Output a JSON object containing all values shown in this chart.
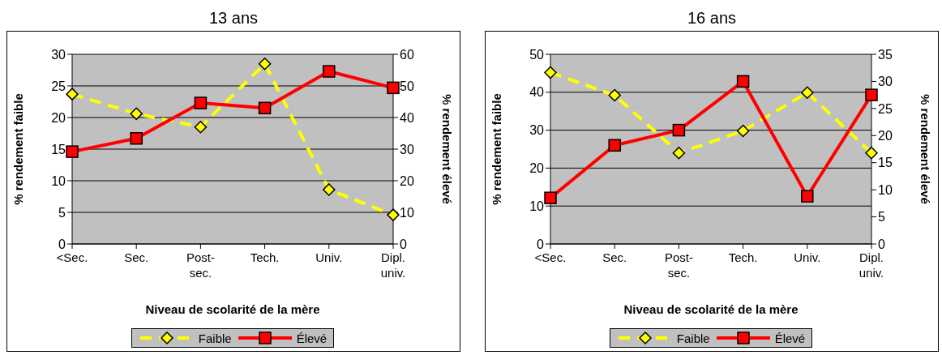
{
  "chart_data": [
    {
      "type": "line",
      "title": "13 ans",
      "categories": [
        "<Sec.",
        "Sec.",
        "Post-sec.",
        "Tech.",
        "Univ.",
        "Dipl. univ."
      ],
      "xlabel": "Niveau de scolarité de la mère",
      "ylabel": "% rendement faible",
      "y2label": "% rendement élevé",
      "ylim": [
        0,
        30
      ],
      "yticks": [
        0,
        5,
        10,
        15,
        20,
        25,
        30
      ],
      "y2lim": [
        0,
        60
      ],
      "y2ticks": [
        0,
        10,
        20,
        30,
        40,
        50,
        60
      ],
      "grid": "y",
      "legend": "bottom",
      "series": [
        {
          "name": "Faible",
          "color": "#ffff00",
          "values": [
            23.7,
            20.6,
            18.5,
            28.5,
            8.6,
            4.6
          ],
          "marker": "diamond",
          "line_style": "dashed"
        },
        {
          "name": "Élevé",
          "color": "#ff0000",
          "values": [
            29.2,
            33.4,
            44.6,
            43,
            54.6,
            49.4
          ],
          "axis": "y2",
          "marker": "square",
          "line_style": "solid"
        }
      ]
    },
    {
      "type": "line",
      "title": "16 ans",
      "categories": [
        "<Sec.",
        "Sec.",
        "Post-sec.",
        "Tech.",
        "Univ.",
        "Dipl. univ."
      ],
      "xlabel": "Niveau de scolarité de la mère",
      "ylabel": "% rendement faible",
      "y2label": "% rendement élevé",
      "ylim": [
        0,
        50
      ],
      "yticks": [
        0,
        10,
        20,
        30,
        40,
        50
      ],
      "y2lim": [
        0,
        35
      ],
      "y2ticks": [
        0,
        5,
        10,
        15,
        20,
        25,
        30,
        35
      ],
      "grid": "y",
      "legend": "bottom",
      "series": [
        {
          "name": "Faible",
          "color": "#ffff00",
          "values": [
            45.2,
            39.2,
            24,
            29.8,
            39.9,
            24
          ],
          "marker": "diamond",
          "line_style": "dashed"
        },
        {
          "name": "Élevé",
          "color": "#ff0000",
          "values": [
            8.5,
            18.2,
            21,
            30,
            8.8,
            27.5
          ],
          "axis": "y2",
          "marker": "square",
          "line_style": "solid"
        }
      ]
    }
  ]
}
